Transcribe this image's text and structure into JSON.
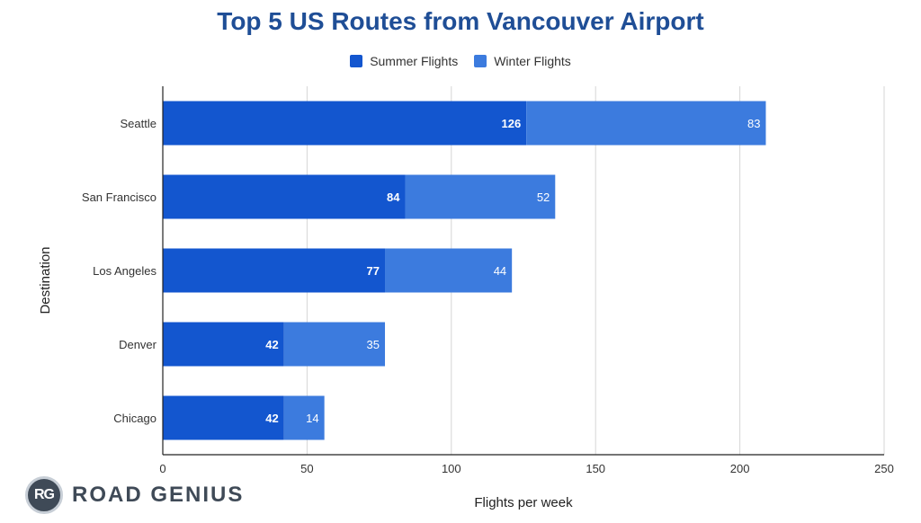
{
  "colors": {
    "title": "#1f4e96",
    "summer": "#1356cf",
    "winter": "#3c7bde",
    "grid": "#d6d6d6",
    "axis": "#222222",
    "text": "#333333"
  },
  "chart_data": {
    "type": "bar",
    "orientation": "horizontal",
    "stacked": true,
    "title": "Top 5 US Routes from Vancouver Airport",
    "xlabel": "Flights per week",
    "ylabel": "Destination",
    "xlim": [
      0,
      250
    ],
    "xticks": [
      0,
      50,
      100,
      150,
      200,
      250
    ],
    "grid": true,
    "legend_position": "top-center",
    "categories": [
      "Seattle",
      "San Francisco",
      "Los Angeles",
      "Denver",
      "Chicago"
    ],
    "series": [
      {
        "name": "Summer Flights",
        "values": [
          126,
          84,
          77,
          42,
          42
        ]
      },
      {
        "name": "Winter Flights",
        "values": [
          83,
          52,
          44,
          35,
          14
        ]
      }
    ]
  },
  "brand": {
    "badge_letters": "RG",
    "name": "ROAD GENIUS"
  }
}
